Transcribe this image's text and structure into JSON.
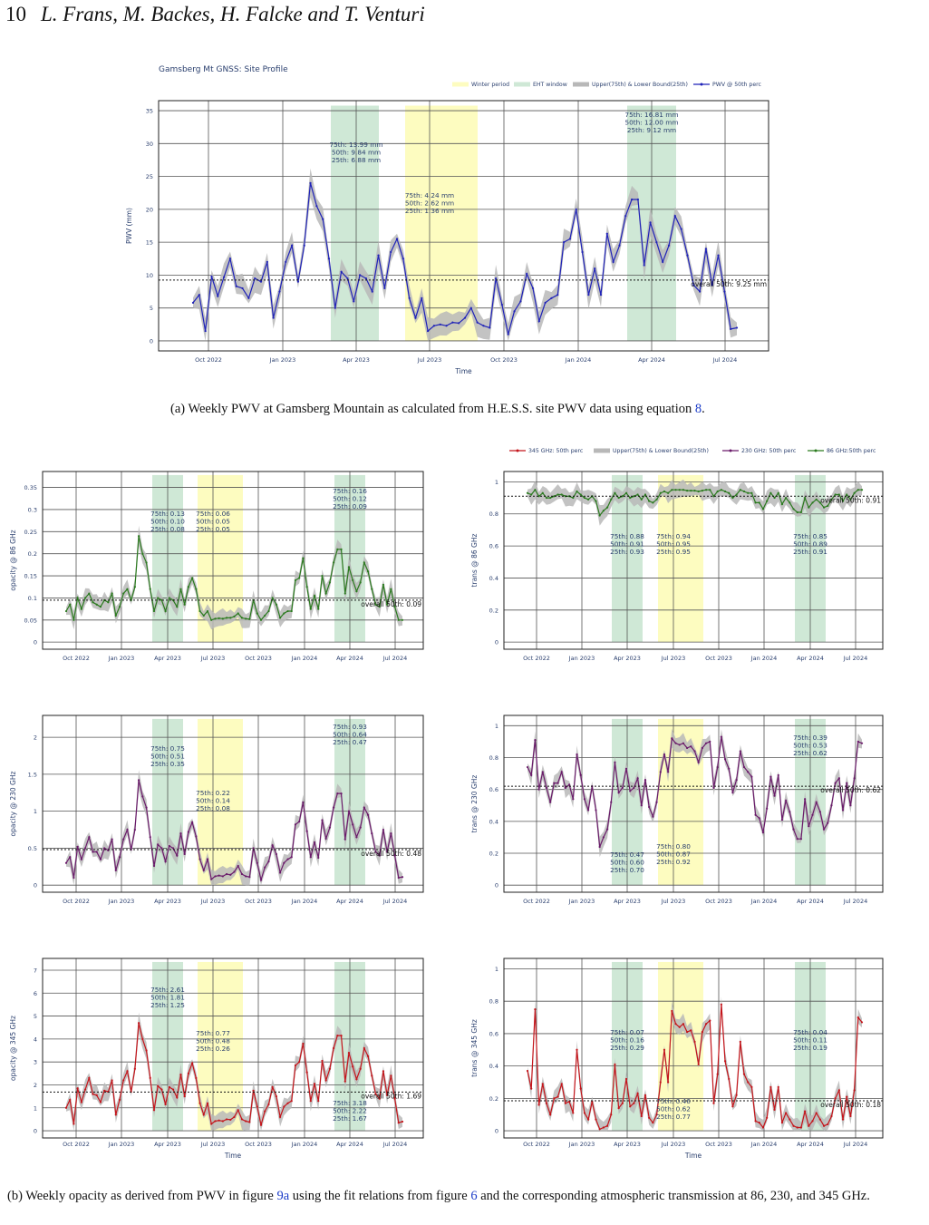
{
  "header": {
    "page": "10",
    "authors": "L. Frans, M. Backes, H. Falcke and T. Venturi"
  },
  "caption_a": {
    "prefix": "(a) Weekly PWV at Gamsberg Mountain as calculated from H.E.S.S. site PWV data using equation ",
    "ref": "8",
    "suffix": "."
  },
  "caption_b": {
    "t1": "(b) Weekly opacity as derived from PWV in figure ",
    "r1": "9a",
    "t2": " using the fit relations from figure ",
    "r2": "6",
    "t3": " and the corresponding atmospheric transmission at 86, 230, and 345 GHz."
  },
  "colors": {
    "pwv": "#1f22b8",
    "ghz86": "#2a7a1e",
    "ghz230": "#6a1a6a",
    "ghz345": "#c4141a",
    "band": "#b8b8b8",
    "eht": "#cfe8d6",
    "winter": "#fdfcc0"
  },
  "legend_a": [
    "Winter period",
    "EHT window",
    "Upper(75th) & Lower Bound(25th)",
    "PWV @ 50th perc"
  ],
  "legend_b": [
    "345 GHz: 50th perc",
    "Upper(75th) & Lower Bound(25th)",
    "230 GHz: 50th perc",
    "86 GHz:50th perc"
  ],
  "chart_data": [
    {
      "type": "line",
      "title": "Gamsberg Mt GNSS: Site Profile",
      "xlabel": "Time",
      "ylabel": "PWV (mm)",
      "x_ticks": [
        "Oct 2022",
        "Jan 2023",
        "Apr 2023",
        "Jul 2023",
        "Oct 2023",
        "Jan 2024",
        "Apr 2024",
        "Jul 2024"
      ],
      "y_ticks": [
        "0",
        "5",
        "10",
        "15",
        "20",
        "25",
        "30",
        "35"
      ],
      "ylim": [
        0,
        35
      ],
      "overall_label": "overall 50th: 9.25 mm",
      "overall": 9.25,
      "annotations": [
        {
          "lines": [
            "75th: 13.99 mm",
            "50th: 9.84 mm",
            "25th: 6.88 mm"
          ]
        },
        {
          "lines": [
            "75th: 4.24 mm",
            "50th: 2.62 mm",
            "25th: 1.36 mm"
          ]
        },
        {
          "lines": [
            "75th: 16.81 mm",
            "50th: 12.00 mm",
            "25th: 9.12 mm"
          ]
        }
      ],
      "series": [
        {
          "name": "PWV @ 50th perc",
          "values": [
            5.8,
            7,
            1.5,
            9.8,
            6.8,
            9.7,
            12.5,
            8.3,
            8,
            6.5,
            9.5,
            9,
            12,
            3.5,
            7.5,
            12,
            14.5,
            9,
            14.5,
            24,
            20.5,
            18.5,
            12.5,
            5,
            10.5,
            9.5,
            6,
            10,
            9.5,
            7.5,
            13,
            8,
            13.5,
            15.5,
            12.5,
            6.5,
            3.5,
            6.5,
            1.5,
            2.3,
            2.5,
            2.3,
            2.8,
            2.7,
            3.5,
            5,
            2.8,
            2.3,
            2,
            9.5,
            5.5,
            1,
            4.5,
            6,
            10.2,
            8,
            3,
            5.8,
            6.5,
            7,
            15,
            15.5,
            20,
            13.5,
            7,
            11,
            7,
            16.3,
            12,
            14.5,
            19,
            21.5,
            21.5,
            11.5,
            18,
            15,
            12,
            14.5,
            19,
            17,
            13,
            8.5,
            7.5,
            14,
            8.5,
            13,
            7.5,
            1.8,
            2
          ]
        }
      ]
    },
    {
      "type": "line",
      "ylabel": "opacity @ 86 GHz",
      "ylim": [
        0,
        0.37
      ],
      "x_ticks": [
        "Oct 2022",
        "Jan 2023",
        "Apr 2023",
        "Jul 2023",
        "Oct 2023",
        "Jan 2024",
        "Apr 2024",
        "Jul 2024"
      ],
      "y_ticks": [
        "0",
        "0.05",
        "0.1",
        "0.15",
        "0.2",
        "0.25",
        "0.3",
        "0.35"
      ],
      "overall_label": "overall 50th: 0.09",
      "overall": 0.095,
      "annotations": [
        {
          "lines": [
            "75th: 0.13",
            "50th: 0.10",
            "25th: 0.08"
          ]
        },
        {
          "lines": [
            "75th: 0.06",
            "50th: 0.05",
            "25th: 0.05"
          ]
        },
        {
          "lines": [
            "75th: 0.16",
            "50th: 0.12",
            "25th: 0.09"
          ]
        }
      ],
      "series": [
        {
          "name": "86 GHz:50th perc",
          "values": [
            0.07,
            0.085,
            0.05,
            0.1,
            0.075,
            0.1,
            0.11,
            0.09,
            0.085,
            0.08,
            0.095,
            0.09,
            0.11,
            0.06,
            0.08,
            0.11,
            0.12,
            0.095,
            0.125,
            0.24,
            0.2,
            0.18,
            0.12,
            0.07,
            0.1,
            0.095,
            0.07,
            0.1,
            0.095,
            0.08,
            0.12,
            0.085,
            0.125,
            0.145,
            0.12,
            0.07,
            0.06,
            0.07,
            0.05,
            0.053,
            0.054,
            0.053,
            0.055,
            0.055,
            0.058,
            0.065,
            0.055,
            0.053,
            0.052,
            0.095,
            0.065,
            0.05,
            0.06,
            0.07,
            0.1,
            0.085,
            0.055,
            0.065,
            0.07,
            0.07,
            0.14,
            0.145,
            0.19,
            0.125,
            0.075,
            0.105,
            0.075,
            0.15,
            0.11,
            0.135,
            0.18,
            0.21,
            0.21,
            0.11,
            0.17,
            0.14,
            0.115,
            0.135,
            0.18,
            0.16,
            0.12,
            0.085,
            0.08,
            0.13,
            0.085,
            0.12,
            0.08,
            0.05,
            0.05
          ]
        }
      ]
    },
    {
      "type": "line",
      "ylabel": "trans @ 86 GHz",
      "ylim": [
        0,
        1.02
      ],
      "x_ticks": [
        "Oct 2022",
        "Jan 2023",
        "Apr 2023",
        "Jul 2023",
        "Oct 2023",
        "Jan 2024",
        "Apr 2024",
        "Jul 2024"
      ],
      "y_ticks": [
        "0",
        "0.2",
        "0.4",
        "0.6",
        "0.8",
        "1"
      ],
      "overall_label": "overall 50th: 0.91",
      "overall": 0.91,
      "annotations": [
        {
          "lines": [
            "75th: 0.88",
            "50th: 0.91",
            "25th: 0.93"
          ]
        },
        {
          "lines": [
            "75th: 0.94",
            "50th: 0.95",
            "25th: 0.95"
          ]
        },
        {
          "lines": [
            "75th: 0.85",
            "50th: 0.89",
            "25th: 0.91"
          ]
        }
      ],
      "series": [
        {
          "name": "86 GHz:50th perc",
          "values": [
            0.93,
            0.92,
            0.95,
            0.91,
            0.93,
            0.9,
            0.9,
            0.91,
            0.92,
            0.92,
            0.91,
            0.91,
            0.9,
            0.94,
            0.92,
            0.9,
            0.89,
            0.91,
            0.88,
            0.79,
            0.82,
            0.84,
            0.89,
            0.93,
            0.9,
            0.91,
            0.93,
            0.9,
            0.91,
            0.92,
            0.89,
            0.92,
            0.88,
            0.87,
            0.89,
            0.93,
            0.94,
            0.93,
            0.95,
            0.95,
            0.95,
            0.95,
            0.945,
            0.945,
            0.945,
            0.94,
            0.945,
            0.95,
            0.95,
            0.91,
            0.94,
            0.95,
            0.94,
            0.93,
            0.9,
            0.92,
            0.95,
            0.94,
            0.93,
            0.93,
            0.87,
            0.87,
            0.83,
            0.88,
            0.93,
            0.9,
            0.93,
            0.86,
            0.9,
            0.87,
            0.83,
            0.81,
            0.81,
            0.9,
            0.84,
            0.87,
            0.89,
            0.87,
            0.84,
            0.85,
            0.89,
            0.92,
            0.92,
            0.88,
            0.92,
            0.89,
            0.93,
            0.95,
            0.95
          ]
        }
      ]
    },
    {
      "type": "line",
      "ylabel": "opacity @ 230 GHz",
      "ylim": [
        0,
        2.2
      ],
      "x_ticks": [
        "Oct 2022",
        "Jan 2023",
        "Apr 2023",
        "Jul 2023",
        "Oct 2023",
        "Jan 2024",
        "Apr 2024",
        "Jul 2024"
      ],
      "y_ticks": [
        "0",
        "0.5",
        "1",
        "1.5",
        "2"
      ],
      "overall_label": "overall 50th: 0.48",
      "overall": 0.48,
      "annotations": [
        {
          "lines": [
            "75th: 0.75",
            "50th: 0.51",
            "25th: 0.35"
          ]
        },
        {
          "lines": [
            "75th: 0.22",
            "50th: 0.14",
            "25th: 0.08"
          ]
        },
        {
          "lines": [
            "75th: 0.93",
            "50th: 0.64",
            "25th: 0.47"
          ]
        }
      ],
      "series": [
        {
          "name": "230 GHz: 50th perc",
          "values": [
            0.3,
            0.38,
            0.1,
            0.52,
            0.35,
            0.5,
            0.65,
            0.45,
            0.45,
            0.35,
            0.5,
            0.47,
            0.62,
            0.2,
            0.38,
            0.62,
            0.75,
            0.48,
            0.75,
            1.42,
            1.2,
            1.05,
            0.65,
            0.26,
            0.55,
            0.5,
            0.32,
            0.53,
            0.5,
            0.4,
            0.7,
            0.42,
            0.72,
            0.85,
            0.66,
            0.35,
            0.2,
            0.35,
            0.08,
            0.12,
            0.13,
            0.12,
            0.15,
            0.14,
            0.18,
            0.26,
            0.15,
            0.12,
            0.11,
            0.5,
            0.3,
            0.07,
            0.24,
            0.32,
            0.54,
            0.42,
            0.17,
            0.3,
            0.35,
            0.38,
            0.82,
            0.86,
            1.12,
            0.73,
            0.38,
            0.58,
            0.37,
            0.88,
            0.63,
            0.78,
            1.05,
            1.24,
            1.24,
            0.62,
            1.0,
            0.82,
            0.65,
            0.78,
            1.05,
            0.95,
            0.7,
            0.45,
            0.4,
            0.75,
            0.45,
            0.7,
            0.4,
            0.1,
            0.11
          ]
        }
      ]
    },
    {
      "type": "line",
      "ylabel": "trans @ 230 GHz",
      "ylim": [
        0,
        1.02
      ],
      "x_ticks": [
        "Oct 2022",
        "Jan 2023",
        "Apr 2023",
        "Jul 2023",
        "Oct 2023",
        "Jan 2024",
        "Apr 2024",
        "Jul 2024"
      ],
      "y_ticks": [
        "0",
        "0.2",
        "0.4",
        "0.6",
        "0.8",
        "1"
      ],
      "overall_label": "overall 50th: 0.62",
      "overall": 0.62,
      "annotations": [
        {
          "lines": [
            "75th: 0.47",
            "50th: 0.60",
            "25th: 0.70"
          ]
        },
        {
          "lines": [
            "75th: 0.80",
            "50th: 0.87",
            "25th: 0.92"
          ]
        },
        {
          "lines": [
            "75th: 0.39",
            "50th: 0.53",
            "25th: 0.62"
          ]
        }
      ],
      "series": [
        {
          "name": "230 GHz: 50th perc",
          "values": [
            0.74,
            0.69,
            0.91,
            0.6,
            0.71,
            0.61,
            0.52,
            0.64,
            0.64,
            0.71,
            0.61,
            0.63,
            0.54,
            0.82,
            0.69,
            0.54,
            0.47,
            0.62,
            0.47,
            0.24,
            0.3,
            0.35,
            0.52,
            0.77,
            0.58,
            0.61,
            0.73,
            0.59,
            0.61,
            0.67,
            0.5,
            0.66,
            0.49,
            0.43,
            0.52,
            0.71,
            0.82,
            0.71,
            0.92,
            0.89,
            0.88,
            0.89,
            0.86,
            0.87,
            0.84,
            0.77,
            0.86,
            0.89,
            0.9,
            0.61,
            0.74,
            0.93,
            0.79,
            0.73,
            0.58,
            0.66,
            0.84,
            0.74,
            0.71,
            0.68,
            0.44,
            0.42,
            0.33,
            0.48,
            0.68,
            0.56,
            0.69,
            0.41,
            0.53,
            0.46,
            0.35,
            0.29,
            0.29,
            0.54,
            0.37,
            0.44,
            0.52,
            0.46,
            0.35,
            0.39,
            0.5,
            0.64,
            0.67,
            0.47,
            0.64,
            0.5,
            0.67,
            0.9,
            0.89
          ]
        }
      ]
    },
    {
      "type": "line",
      "xlabel": "Time",
      "ylabel": "opacity @ 345 GHz",
      "ylim": [
        0,
        7.2
      ],
      "x_ticks": [
        "Oct 2022",
        "Jan 2023",
        "Apr 2023",
        "Jul 2023",
        "Oct 2023",
        "Jan 2024",
        "Apr 2024",
        "Jul 2024"
      ],
      "y_ticks": [
        "0",
        "1",
        "2",
        "3",
        "4",
        "5",
        "6",
        "7"
      ],
      "overall_label": "overall 50th: 1.69",
      "overall": 1.69,
      "annotations": [
        {
          "lines": [
            "75th: 2.61",
            "50th: 1.81",
            "25th: 1.25"
          ]
        },
        {
          "lines": [
            "75th: 0.77",
            "50th: 0.48",
            "25th: 0.26"
          ]
        },
        {
          "lines": [
            "75th: 3.18",
            "50th: 2.22",
            "25th: 1.67"
          ]
        }
      ],
      "series": [
        {
          "name": "345 GHz: 50th perc",
          "values": [
            1.0,
            1.35,
            0.3,
            1.85,
            1.25,
            1.8,
            2.3,
            1.6,
            1.55,
            1.25,
            1.75,
            1.7,
            2.2,
            0.7,
            1.35,
            2.2,
            2.6,
            1.7,
            2.7,
            4.7,
            4.0,
            3.5,
            2.3,
            0.9,
            1.95,
            1.8,
            1.15,
            1.9,
            1.8,
            1.45,
            2.45,
            1.5,
            2.5,
            2.95,
            2.3,
            1.2,
            0.7,
            1.2,
            0.3,
            0.42,
            0.45,
            0.42,
            0.5,
            0.48,
            0.6,
            0.9,
            0.5,
            0.42,
            0.38,
            1.75,
            1.05,
            0.25,
            0.85,
            1.15,
            1.9,
            1.5,
            0.6,
            1.05,
            1.2,
            1.3,
            2.85,
            3.0,
            3.8,
            2.55,
            1.3,
            2.05,
            1.3,
            3.05,
            2.2,
            2.7,
            3.6,
            4.15,
            4.15,
            2.15,
            3.4,
            2.8,
            2.25,
            2.7,
            3.6,
            3.25,
            2.4,
            1.6,
            1.4,
            2.6,
            1.55,
            2.4,
            1.4,
            0.35,
            0.4
          ]
        }
      ]
    },
    {
      "type": "line",
      "xlabel": "Time",
      "ylabel": "trans @ 345 GHz",
      "ylim": [
        0,
        1.02
      ],
      "x_ticks": [
        "Oct 2022",
        "Jan 2023",
        "Apr 2023",
        "Jul 2023",
        "Oct 2023",
        "Jan 2024",
        "Apr 2024",
        "Jul 2024"
      ],
      "y_ticks": [
        "0",
        "0.2",
        "0.4",
        "0.6",
        "0.8",
        "1"
      ],
      "overall_label": "overall 50th: 0.18",
      "overall": 0.185,
      "annotations": [
        {
          "lines": [
            "75th: 0.07",
            "50th: 0.16",
            "25th: 0.29"
          ]
        },
        {
          "lines": [
            "75th: 0.46",
            "50th: 0.62",
            "25th: 0.77"
          ]
        },
        {
          "lines": [
            "75th: 0.04",
            "50th: 0.11",
            "25th: 0.19"
          ]
        }
      ],
      "series": [
        {
          "name": "345 GHz: 50th perc",
          "values": [
            0.37,
            0.26,
            0.75,
            0.16,
            0.29,
            0.17,
            0.1,
            0.2,
            0.21,
            0.29,
            0.17,
            0.18,
            0.11,
            0.5,
            0.26,
            0.11,
            0.07,
            0.18,
            0.07,
            0.01,
            0.02,
            0.03,
            0.1,
            0.41,
            0.14,
            0.17,
            0.32,
            0.15,
            0.17,
            0.23,
            0.09,
            0.22,
            0.08,
            0.05,
            0.1,
            0.3,
            0.5,
            0.3,
            0.74,
            0.66,
            0.64,
            0.66,
            0.61,
            0.62,
            0.55,
            0.41,
            0.61,
            0.66,
            0.68,
            0.17,
            0.35,
            0.78,
            0.43,
            0.32,
            0.15,
            0.22,
            0.55,
            0.35,
            0.3,
            0.27,
            0.06,
            0.05,
            0.02,
            0.08,
            0.27,
            0.13,
            0.27,
            0.05,
            0.11,
            0.07,
            0.03,
            0.02,
            0.02,
            0.12,
            0.03,
            0.06,
            0.11,
            0.07,
            0.03,
            0.04,
            0.09,
            0.2,
            0.25,
            0.07,
            0.21,
            0.09,
            0.25,
            0.7,
            0.67
          ]
        }
      ]
    }
  ]
}
